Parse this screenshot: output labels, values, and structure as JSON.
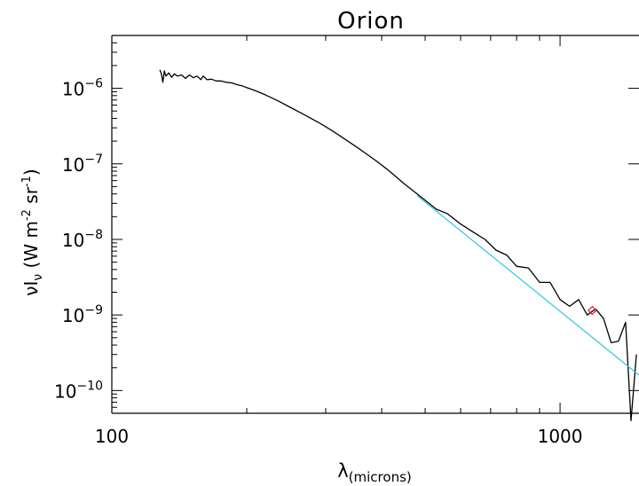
{
  "chart_data": {
    "type": "line",
    "title": "Orion",
    "xlabel_main": "λ",
    "xlabel_sub": "(microns)",
    "ylabel_parts": [
      "νI",
      "ν",
      " (W m",
      "-2",
      " sr",
      "-1",
      ")"
    ],
    "x_scale": "log",
    "y_scale": "log",
    "xlim": [
      100,
      1500
    ],
    "ylim": [
      5e-11,
      5e-06
    ],
    "x_ticks": [
      {
        "value": 100,
        "label": "100"
      },
      {
        "value": 1000,
        "label": "1000"
      }
    ],
    "y_ticks": [
      {
        "value": 1e-06,
        "base": "10",
        "exp": "−6"
      },
      {
        "value": 1e-07,
        "base": "10",
        "exp": "−7"
      },
      {
        "value": 1e-08,
        "base": "10",
        "exp": "−8"
      },
      {
        "value": 1e-09,
        "base": "10",
        "exp": "−9"
      },
      {
        "value": 1e-10,
        "base": "10",
        "exp": "−10"
      }
    ],
    "grid": false,
    "colors": {
      "spectrum": "#000000",
      "fit": "#2ec4e6",
      "marker": "#e0202a",
      "axes": "#000000"
    },
    "series": [
      {
        "style": "line",
        "points": [
          [
            128,
            1.75e-06
          ],
          [
            129,
            1.55e-06
          ],
          [
            130,
            1.2e-06
          ],
          [
            131,
            1.7e-06
          ],
          [
            132,
            1.45e-06
          ],
          [
            134,
            1.6e-06
          ],
          [
            136,
            1.4e-06
          ],
          [
            138,
            1.55e-06
          ],
          [
            140,
            1.45e-06
          ],
          [
            143,
            1.5e-06
          ],
          [
            146,
            1.35e-06
          ],
          [
            149,
            1.5e-06
          ],
          [
            152,
            1.38e-06
          ],
          [
            155,
            1.45e-06
          ],
          [
            158,
            1.3e-06
          ],
          [
            160,
            1.45e-06
          ],
          [
            163,
            1.3e-06
          ],
          [
            167,
            1.32e-06
          ],
          [
            171,
            1.25e-06
          ],
          [
            175,
            1.25e-06
          ],
          [
            180,
            1.2e-06
          ],
          [
            185,
            1.18e-06
          ],
          [
            190,
            1.12e-06
          ],
          [
            195,
            1.08e-06
          ],
          [
            200,
            1.02e-06
          ],
          [
            210,
            9.2e-07
          ],
          [
            220,
            8.2e-07
          ],
          [
            235,
            6.8e-07
          ],
          [
            250,
            5.6e-07
          ],
          [
            270,
            4.4e-07
          ],
          [
            290,
            3.5e-07
          ],
          [
            310,
            2.75e-07
          ],
          [
            330,
            2.15e-07
          ],
          [
            350,
            1.7e-07
          ],
          [
            370,
            1.35e-07
          ],
          [
            390,
            1.08e-07
          ],
          [
            410,
            8.6e-08
          ],
          [
            430,
            6.8e-08
          ],
          [
            450,
            5.4e-08
          ],
          [
            470,
            4.4e-08
          ],
          [
            500,
            3.3e-08
          ],
          [
            530,
            2.5e-08
          ],
          [
            560,
            2.2e-08
          ],
          [
            600,
            1.6e-08
          ],
          [
            640,
            1.25e-08
          ],
          [
            680,
            1e-08
          ],
          [
            720,
            7.2e-09
          ],
          [
            760,
            6.2e-09
          ],
          [
            800,
            4.4e-09
          ],
          [
            850,
            4.2e-09
          ],
          [
            900,
            2.7e-09
          ],
          [
            950,
            2.7e-09
          ],
          [
            1000,
            1.6e-09
          ],
          [
            1050,
            1.3e-09
          ],
          [
            1100,
            1.6e-09
          ],
          [
            1150,
            1e-09
          ],
          [
            1200,
            1.2e-09
          ],
          [
            1250,
            9e-10
          ],
          [
            1300,
            4.3e-10
          ],
          [
            1350,
            4.5e-10
          ],
          [
            1400,
            8e-10
          ],
          [
            1440,
            4e-11
          ],
          [
            1480,
            3e-10
          ]
        ]
      },
      {
        "style": "line",
        "points": [
          [
            480,
            3.8e-08
          ],
          [
            1500,
            1.6e-10
          ]
        ]
      },
      {
        "style": "marker",
        "points": [
          [
            1180,
            1.15e-09
          ]
        ]
      }
    ]
  }
}
